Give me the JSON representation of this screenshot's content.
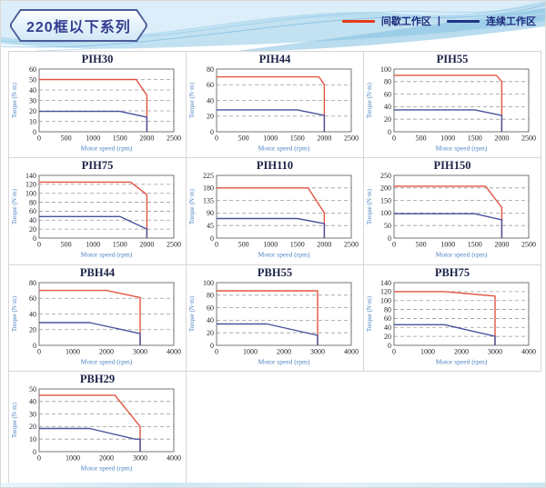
{
  "header": {
    "title": "220框以下系列",
    "legend": {
      "items": [
        {
          "label": "间歇工作区",
          "color": "#e63917"
        },
        {
          "label": "连续工作区",
          "color": "#1f3587"
        }
      ],
      "separator": "|"
    }
  },
  "colors": {
    "intermittent_line": "#e25540",
    "continuous_line": "#4a529e",
    "grid_line": "#9a9a9a",
    "plot_border": "#666666",
    "tick_text": "#26262e",
    "axis_label_text": "#4d84c4",
    "chart_title_text": "#1b2247"
  },
  "chart_data": [
    {
      "type": "line",
      "title": "PIH30",
      "xlabel": "Motor speed (rpm)",
      "ylabel": "Torque (N·m)",
      "xlim": [
        0,
        2500
      ],
      "ylim": [
        0,
        60
      ],
      "xticks": [
        0,
        500,
        1000,
        1500,
        2000,
        2500
      ],
      "yticks": [
        0,
        10,
        20,
        30,
        40,
        50,
        60
      ],
      "grid": "horizontal-dashed",
      "legend_position": "page-top-right",
      "series": [
        {
          "name": "间歇工作区",
          "color": "#e25540",
          "points": [
            [
              0,
              50
            ],
            [
              1800,
              50
            ],
            [
              2000,
              35
            ],
            [
              2000,
              0
            ]
          ]
        },
        {
          "name": "连续工作区",
          "color": "#4a529e",
          "points": [
            [
              0,
              19.5
            ],
            [
              1500,
              19.5
            ],
            [
              2000,
              14
            ],
            [
              2000,
              0
            ]
          ]
        }
      ]
    },
    {
      "type": "line",
      "title": "PIH44",
      "xlabel": "Motor speed (rpm)",
      "ylabel": "Torque (N·m)",
      "xlim": [
        0,
        2500
      ],
      "ylim": [
        0,
        80
      ],
      "xticks": [
        0,
        500,
        1000,
        1500,
        2000,
        2500
      ],
      "yticks": [
        0,
        20,
        40,
        60,
        80
      ],
      "grid": "horizontal-dashed",
      "legend_position": "page-top-right",
      "series": [
        {
          "name": "间歇工作区",
          "color": "#e25540",
          "points": [
            [
              0,
              70
            ],
            [
              1900,
              70
            ],
            [
              2000,
              60
            ],
            [
              2000,
              0
            ]
          ]
        },
        {
          "name": "连续工作区",
          "color": "#4a529e",
          "points": [
            [
              0,
              28
            ],
            [
              1500,
              28
            ],
            [
              2000,
              21
            ],
            [
              2000,
              0
            ]
          ]
        }
      ]
    },
    {
      "type": "line",
      "title": "PIH55",
      "xlabel": "Motor speed (rpm)",
      "ylabel": "Torque (N·m)",
      "xlim": [
        0,
        2500
      ],
      "ylim": [
        0,
        100
      ],
      "xticks": [
        0,
        500,
        1000,
        1500,
        2000,
        2500
      ],
      "yticks": [
        0,
        20,
        40,
        60,
        80,
        100
      ],
      "grid": "horizontal-dashed",
      "legend_position": "page-top-right",
      "series": [
        {
          "name": "间歇工作区",
          "color": "#e25540",
          "points": [
            [
              0,
              90
            ],
            [
              1900,
              90
            ],
            [
              2000,
              80
            ],
            [
              2000,
              0
            ]
          ]
        },
        {
          "name": "连续工作区",
          "color": "#4a529e",
          "points": [
            [
              0,
              35
            ],
            [
              1500,
              35
            ],
            [
              2000,
              26
            ],
            [
              2000,
              0
            ]
          ]
        }
      ]
    },
    {
      "type": "line",
      "title": "PIH75",
      "xlabel": "Motor speed (rpm)",
      "ylabel": "Torque (N·m)",
      "xlim": [
        0,
        2500
      ],
      "ylim": [
        0,
        140
      ],
      "xticks": [
        0,
        500,
        1000,
        1500,
        2000,
        2500
      ],
      "yticks": [
        0,
        20,
        40,
        60,
        80,
        100,
        120,
        140
      ],
      "grid": "horizontal-dashed",
      "legend_position": "page-top-right",
      "series": [
        {
          "name": "间歇工作区",
          "color": "#e25540",
          "points": [
            [
              0,
              125
            ],
            [
              1700,
              125
            ],
            [
              2000,
              97
            ],
            [
              2000,
              0
            ]
          ]
        },
        {
          "name": "连续工作区",
          "color": "#4a529e",
          "points": [
            [
              0,
              48
            ],
            [
              1500,
              48
            ],
            [
              2000,
              20
            ],
            [
              2000,
              0
            ]
          ]
        }
      ]
    },
    {
      "type": "line",
      "title": "PIH110",
      "xlabel": "Motor speed (rpm)",
      "ylabel": "Torque (N·m)",
      "xlim": [
        0,
        2500
      ],
      "ylim": [
        0,
        225
      ],
      "xticks": [
        0,
        500,
        1000,
        1500,
        2000,
        2500
      ],
      "yticks": [
        0,
        45,
        90,
        135,
        180,
        225
      ],
      "grid": "horizontal-dashed",
      "legend_position": "page-top-right",
      "series": [
        {
          "name": "间歇工作区",
          "color": "#e25540",
          "points": [
            [
              0,
              180
            ],
            [
              1700,
              180
            ],
            [
              2000,
              90
            ],
            [
              2000,
              0
            ]
          ]
        },
        {
          "name": "连续工作区",
          "color": "#4a529e",
          "points": [
            [
              0,
              70
            ],
            [
              1500,
              70
            ],
            [
              2000,
              52
            ],
            [
              2000,
              0
            ]
          ]
        }
      ]
    },
    {
      "type": "line",
      "title": "PIH150",
      "xlabel": "Motor speed (rpm)",
      "ylabel": "Torque (N·m)",
      "xlim": [
        0,
        2500
      ],
      "ylim": [
        0,
        250
      ],
      "xticks": [
        0,
        500,
        1000,
        1500,
        2000,
        2500
      ],
      "yticks": [
        0,
        50,
        100,
        150,
        200,
        250
      ],
      "grid": "horizontal-dashed",
      "legend_position": "page-top-right",
      "series": [
        {
          "name": "间歇工作区",
          "color": "#e25540",
          "points": [
            [
              0,
              207
            ],
            [
              1700,
              207
            ],
            [
              2000,
              122
            ],
            [
              2000,
              0
            ]
          ]
        },
        {
          "name": "连续工作区",
          "color": "#4a529e",
          "points": [
            [
              0,
              97
            ],
            [
              1500,
              97
            ],
            [
              2000,
              73
            ],
            [
              2000,
              0
            ]
          ]
        }
      ]
    },
    {
      "type": "line",
      "title": "PBH44",
      "xlabel": "Motor speed (rpm)",
      "ylabel": "Torque (N·m)",
      "xlim": [
        0,
        4000
      ],
      "ylim": [
        0,
        80
      ],
      "xticks": [
        0,
        1000,
        2000,
        3000,
        4000
      ],
      "yticks": [
        0,
        20,
        40,
        60,
        80
      ],
      "grid": "horizontal-dashed",
      "legend_position": "page-top-right",
      "series": [
        {
          "name": "间歇工作区",
          "color": "#e25540",
          "points": [
            [
              0,
              70
            ],
            [
              2000,
              70
            ],
            [
              3000,
              61
            ],
            [
              3000,
              0
            ]
          ]
        },
        {
          "name": "连续工作区",
          "color": "#4a529e",
          "points": [
            [
              0,
              29
            ],
            [
              1500,
              29
            ],
            [
              3000,
              15
            ],
            [
              3000,
              0
            ]
          ]
        }
      ]
    },
    {
      "type": "line",
      "title": "PBH55",
      "xlabel": "Motor speed (rpm)",
      "ylabel": "Torque (N·m)",
      "xlim": [
        0,
        4000
      ],
      "ylim": [
        0,
        100
      ],
      "xticks": [
        0,
        1000,
        2000,
        3000,
        4000
      ],
      "yticks": [
        0,
        20,
        40,
        60,
        80,
        100
      ],
      "grid": "horizontal-dashed",
      "legend_position": "page-top-right",
      "series": [
        {
          "name": "间歇工作区",
          "color": "#e25540",
          "points": [
            [
              0,
              87
            ],
            [
              3000,
              87
            ],
            [
              3000,
              0
            ]
          ]
        },
        {
          "name": "连续工作区",
          "color": "#4a529e",
          "points": [
            [
              0,
              34
            ],
            [
              1500,
              34
            ],
            [
              3000,
              16
            ],
            [
              3000,
              0
            ]
          ]
        }
      ]
    },
    {
      "type": "line",
      "title": "PBH75",
      "xlabel": "Motor speed (rpm)",
      "ylabel": "Torque (N·m)",
      "xlim": [
        0,
        4000
      ],
      "ylim": [
        0,
        140
      ],
      "xticks": [
        0,
        1000,
        2000,
        3000,
        4000
      ],
      "yticks": [
        0,
        20,
        40,
        60,
        80,
        100,
        120,
        140
      ],
      "grid": "horizontal-dashed",
      "legend_position": "page-top-right",
      "series": [
        {
          "name": "间歇工作区",
          "color": "#e25540",
          "points": [
            [
              0,
              120
            ],
            [
              1500,
              120
            ],
            [
              3000,
              110
            ],
            [
              3000,
              0
            ]
          ]
        },
        {
          "name": "连续工作区",
          "color": "#4a529e",
          "points": [
            [
              0,
              46
            ],
            [
              1500,
              46
            ],
            [
              3000,
              20
            ],
            [
              3000,
              0
            ]
          ]
        }
      ]
    },
    {
      "type": "line",
      "title": "PBH29",
      "xlabel": "Motor speed (rpm)",
      "ylabel": "Torque (N·m)",
      "xlim": [
        0,
        4000
      ],
      "ylim": [
        0,
        50
      ],
      "xticks": [
        0,
        1000,
        2000,
        3000,
        4000
      ],
      "yticks": [
        0,
        10,
        20,
        30,
        40,
        50
      ],
      "grid": "horizontal-dashed",
      "legend_position": "page-top-right",
      "series": [
        {
          "name": "间歇工作区",
          "color": "#e25540",
          "points": [
            [
              0,
              45
            ],
            [
              2250,
              45
            ],
            [
              3000,
              20
            ],
            [
              3000,
              0
            ]
          ]
        },
        {
          "name": "连续工作区",
          "color": "#4a529e",
          "points": [
            [
              0,
              18.5
            ],
            [
              1500,
              18.5
            ],
            [
              2850,
              10
            ],
            [
              3000,
              10
            ],
            [
              3000,
              0
            ]
          ]
        }
      ]
    }
  ]
}
